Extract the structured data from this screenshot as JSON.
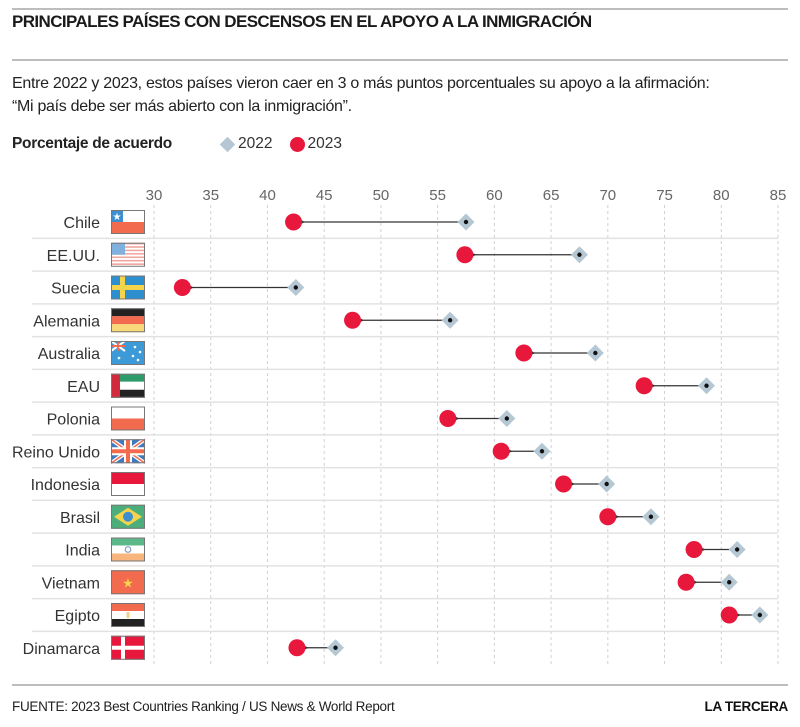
{
  "header": {
    "title": "PRINCIPALES PAÍSES CON DESCENSOS EN EL APOYO A LA INMIGRACIÓN",
    "subtitle_line1": "Entre 2022 y 2023, estos países vieron caer en 3 o más puntos porcentuales su apoyo a la afirmación:",
    "subtitle_line2": "“Mi país debe ser más abierto con la inmigración”."
  },
  "legend": {
    "label": "Porcentaje de acuerdo",
    "items": [
      {
        "name": "2022",
        "marker": "diamond",
        "color": "#b4c7d3"
      },
      {
        "name": "2023",
        "marker": "circle",
        "color": "#e8173c"
      }
    ]
  },
  "footer": {
    "source": "FUENTE: 2023 Best Countries Ranking / US News & World Report",
    "brand": "LA TERCERA"
  },
  "colors": {
    "c2022": "#b4c7d3",
    "c2023": "#e8173c",
    "arrow": "#333333",
    "grid": "#d0d0d0"
  },
  "chart_data": {
    "type": "dumbbell",
    "title": "PRINCIPALES PAÍSES CON DESCENSOS EN EL APOYO A LA INMIGRACIÓN",
    "xlabel": "Porcentaje de acuerdo",
    "ylabel": "",
    "xlim": [
      30,
      85
    ],
    "xticks": [
      30,
      35,
      40,
      45,
      50,
      55,
      60,
      65,
      70,
      75,
      80,
      85
    ],
    "grid": true,
    "legend_position": "top-left",
    "categories": [
      "Chile",
      "EE.UU.",
      "Suecia",
      "Alemania",
      "Australia",
      "EAU",
      "Polonia",
      "Reino Unido",
      "Indonesia",
      "Brasil",
      "India",
      "Vietnam",
      "Egipto",
      "Dinamarca"
    ],
    "flags": [
      "chile-flag",
      "usa-flag",
      "sweden-flag",
      "germany-flag",
      "australia-flag",
      "uae-flag",
      "poland-flag",
      "uk-flag",
      "indonesia-flag",
      "brazil-flag",
      "india-flag",
      "vietnam-flag",
      "egypt-flag",
      "denmark-flag"
    ],
    "series": [
      {
        "name": "2022",
        "values": [
          57.5,
          67.5,
          42.5,
          56.1,
          68.9,
          78.7,
          61.1,
          64.2,
          69.9,
          73.8,
          81.4,
          80.7,
          83.4,
          46.0
        ]
      },
      {
        "name": "2023",
        "values": [
          42.3,
          57.4,
          32.5,
          47.5,
          62.6,
          73.2,
          55.9,
          60.6,
          66.1,
          70.0,
          77.6,
          76.9,
          80.7,
          42.6
        ]
      }
    ]
  }
}
